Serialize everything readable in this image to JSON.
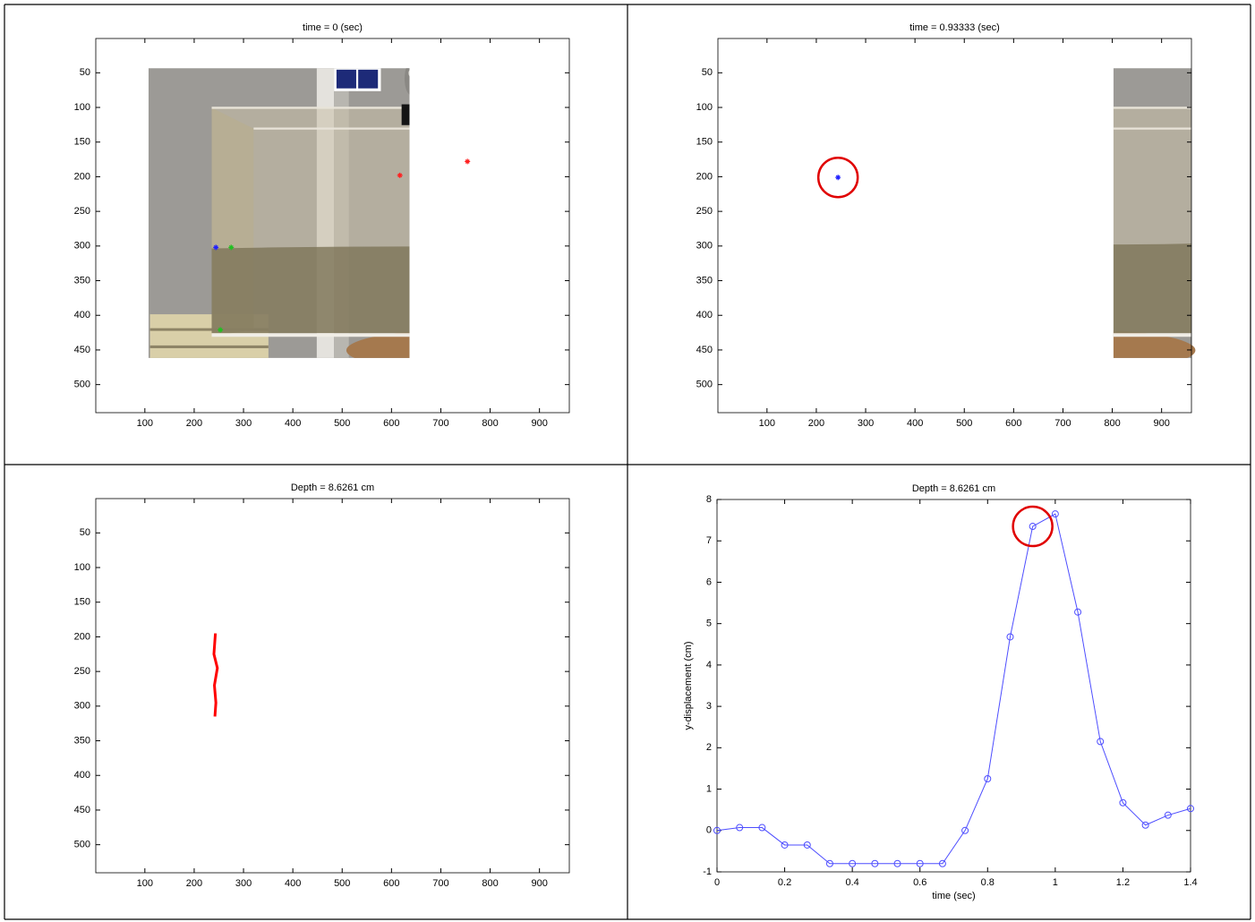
{
  "chart_data": [
    {
      "type": "image",
      "title": "time = 0 (sec)",
      "xlim": [
        0.5,
        960.5
      ],
      "ylim": [
        0.5,
        540.5
      ],
      "yaxis_reversed": true,
      "xticks": [
        100,
        200,
        300,
        400,
        500,
        600,
        700,
        800,
        900
      ],
      "yticks": [
        50,
        100,
        150,
        200,
        250,
        300,
        350,
        400,
        450,
        500
      ],
      "markers": [
        {
          "color": "#ff2020",
          "x": [
            617,
            754
          ],
          "y": [
            198,
            178
          ]
        },
        {
          "color": "#20c020",
          "x": [
            275,
            253
          ],
          "y": [
            302,
            421
          ]
        },
        {
          "color": "#2020ff",
          "x": [
            244
          ],
          "y": [
            302
          ]
        }
      ]
    },
    {
      "type": "image",
      "title": "time = 0.93333 (sec)",
      "xlim": [
        0.5,
        960.5
      ],
      "ylim": [
        0.5,
        540.5
      ],
      "yaxis_reversed": true,
      "xticks": [
        100,
        200,
        300,
        400,
        500,
        600,
        700,
        800,
        900
      ],
      "yticks": [
        50,
        100,
        150,
        200,
        250,
        300,
        350,
        400,
        450,
        500
      ],
      "markers": [
        {
          "color": "#2020ff",
          "x": [
            244
          ],
          "y": [
            201
          ]
        }
      ],
      "highlight": {
        "color": "#e00000",
        "x": 244,
        "y": 201
      }
    },
    {
      "type": "image",
      "title": "Depth = 8.6261 cm",
      "xlim": [
        0.5,
        960.5
      ],
      "ylim": [
        0.5,
        540.5
      ],
      "yaxis_reversed": true,
      "xticks": [
        100,
        200,
        300,
        400,
        500,
        600,
        700,
        800,
        900
      ],
      "yticks": [
        50,
        100,
        150,
        200,
        250,
        300,
        350,
        400,
        450,
        500
      ],
      "lines": [
        {
          "color": "#ff0000",
          "x": [
            243,
            240,
            247,
            241,
            244,
            242
          ],
          "y": [
            195,
            225,
            245,
            270,
            295,
            315
          ]
        }
      ]
    },
    {
      "type": "line",
      "title": "Depth = 8.6261 cm",
      "x_label": "time (sec)",
      "y_label": "y-displacement (cm)",
      "xlim": [
        0,
        1.4
      ],
      "ylim": [
        -1,
        8
      ],
      "xticks": [
        0,
        0.2,
        0.4,
        0.6,
        0.8,
        1,
        1.2,
        1.4
      ],
      "yticks": [
        -1,
        0,
        1,
        2,
        3,
        4,
        5,
        6,
        7,
        8
      ],
      "x": [
        0,
        0.0667,
        0.1333,
        0.2,
        0.2667,
        0.3333,
        0.4,
        0.4667,
        0.5333,
        0.6,
        0.6667,
        0.7333,
        0.8,
        0.8667,
        0.9333,
        1,
        1.0667,
        1.1333,
        1.2,
        1.2667,
        1.3333,
        1.4
      ],
      "series": [
        {
          "color": "#4d4dff",
          "values": [
            0,
            0.07,
            0.07,
            -0.35,
            -0.35,
            -0.8,
            -0.8,
            -0.8,
            -0.8,
            -0.8,
            -0.8,
            0,
            1.25,
            4.68,
            7.35,
            7.65,
            5.28,
            2.15,
            0.67,
            0.13,
            0.37,
            0.53
          ]
        }
      ],
      "highlight": {
        "color": "#e00000",
        "x": 0.9333,
        "y": 7.35
      }
    }
  ]
}
